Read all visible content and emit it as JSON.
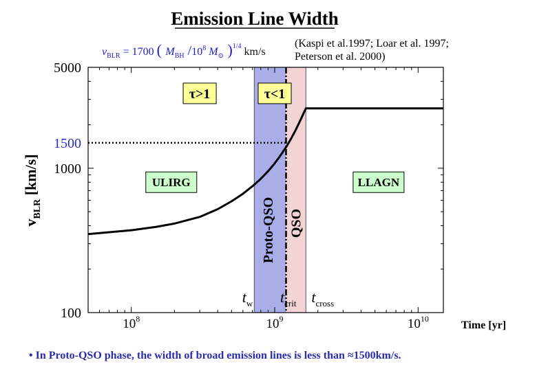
{
  "title": "Emission Line Width",
  "formula": {
    "lhs": "v",
    "lhs_sub": "BLR",
    "eq": "= 1700",
    "m_bh": "M",
    "m_bh_sub": "BH",
    "slash": "/",
    "ten": "10",
    "ten_exp": "8",
    "m_sun": "M",
    "sun_sub": "⊙",
    "power": "1/4",
    "units": "km/s"
  },
  "citation": [
    "(Kaspi et al.1997; Loar et al. 1997;",
    "Peterson et al. 2000)"
  ],
  "bullet": "• In Proto-QSO phase, the width of broad emission lines is less than ≈1500km/s.",
  "colors": {
    "title": "#000000",
    "formula": "#1c1ccc",
    "bullet": "#2b2bb0",
    "proto_band": "#a9aee8",
    "qso_band": "#f3d3d3",
    "label_box": "#ffff99",
    "region_box": "#ccffcc",
    "curve": "#000000",
    "axis_1500": "#2a2ad0"
  },
  "chart_data": {
    "type": "line",
    "xscale": "log",
    "yscale": "log",
    "xlim": [
      50000000,
      15000000000
    ],
    "ylim": [
      100,
      5000
    ],
    "xlabel": "Time  [yr]",
    "ylabel": "v",
    "ylabel_sub": "BLR",
    "ylabel_unit": "[km/s]",
    "xticks": [
      {
        "value": 100000000,
        "base": "10",
        "exp": "8"
      },
      {
        "value": 1000000000,
        "base": "10",
        "exp": "9"
      },
      {
        "value": 10000000000,
        "base": "10",
        "exp": "10"
      }
    ],
    "yticks": [
      {
        "value": 5000,
        "label": "5000"
      },
      {
        "value": 1000,
        "label": "1000"
      },
      {
        "value": 100,
        "label": "100"
      }
    ],
    "ytick_highlight": {
      "value": 1500,
      "label": "1500"
    },
    "series": [
      {
        "name": "v_BLR",
        "x": [
          50000000,
          100000000,
          150000000,
          200000000,
          300000000,
          400000000,
          500000000,
          600000000,
          700000000,
          800000000,
          900000000,
          1000000000,
          1100000000,
          1200000000,
          1300000000,
          1400000000,
          1500000000,
          1650000000,
          15000000000
        ],
        "y": [
          350,
          372,
          393,
          414,
          460,
          520,
          590,
          665,
          750,
          845,
          955,
          1080,
          1230,
          1400,
          1600,
          1840,
          2120,
          2600,
          2600
        ]
      }
    ],
    "hline": {
      "y": 1500,
      "x_from": 50000000,
      "x_to": 1200000000,
      "style": "dotted"
    },
    "vline": {
      "x": 1200000000,
      "style": "dash-dot"
    },
    "bands": [
      {
        "name": "Proto-QSO",
        "x_from": 720000000,
        "x_to": 1200000000
      },
      {
        "name": "QSO",
        "x_from": 1200000000,
        "x_to": 1650000000
      }
    ],
    "phase_labels": [
      {
        "text": "τ>1",
        "x": 300000000,
        "y": 3300
      },
      {
        "text": "τ<1",
        "x": 1000000000,
        "y": 3300
      }
    ],
    "regions": [
      {
        "text": "ULIRG",
        "x": 190000000,
        "y": 800
      },
      {
        "text": "LLAGN",
        "x": 5300000000,
        "y": 800
      }
    ],
    "time_markers": [
      {
        "base": "t",
        "sub": "w",
        "x": 720000000
      },
      {
        "base": "t",
        "sub": "crit",
        "x": 1000000000
      },
      {
        "base": "t",
        "sub": "cross",
        "x": 1650000000
      }
    ]
  }
}
